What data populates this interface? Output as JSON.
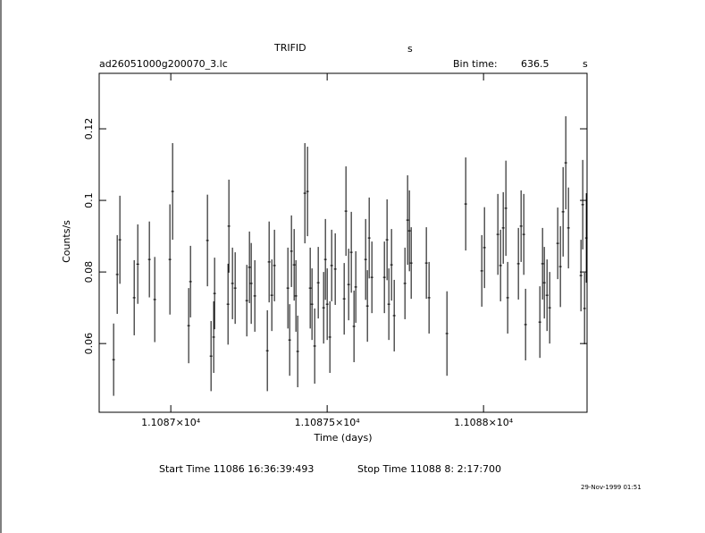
{
  "chart_data": {
    "type": "scatter",
    "title": "TRIFID",
    "title_unit": "s",
    "file": "ad26051000g200070_3.lc",
    "bin_label": "Bin time:",
    "bin_time": 636.5,
    "bin_unit": "s",
    "ylabel": "Counts/s",
    "xlabel": "Time (days)",
    "start_time": "Start Time 11086 16:36:39:493",
    "stop_time": "Stop Time 11088  8: 2:17:700",
    "date": "29-Nov-1999 01:51",
    "color": "#000000",
    "xlim": [
      11086.771,
      11088.331
    ],
    "ylim": [
      0.0408,
      0.1355
    ],
    "xticks": [
      {
        "value": 11087,
        "label": "1.1087×10⁴"
      },
      {
        "value": 11087.5,
        "label": "1.10875×10⁴"
      },
      {
        "value": 11088,
        "label": "1.1088×10⁴"
      }
    ],
    "yticks": [
      0.06,
      0.08,
      0.1,
      0.12
    ],
    "x": [
      11086.8171,
      11086.8286,
      11086.8371,
      11086.8829,
      11086.8943,
      11086.9314,
      11086.9486,
      11086.9971,
      11087.0057,
      11087.0571,
      11087.0629,
      11087.1171,
      11087.1286,
      11087.1371,
      11087.14,
      11087.1829,
      11087.1857,
      11087.1971,
      11087.2057,
      11087.2429,
      11087.2514,
      11087.2571,
      11087.2686,
      11087.3086,
      11087.3143,
      11087.3229,
      11087.3314,
      11087.3743,
      11087.38,
      11087.3857,
      11087.3943,
      11087.4,
      11087.4057,
      11087.4286,
      11087.4371,
      11087.4457,
      11087.4514,
      11087.46,
      11087.4714,
      11087.4886,
      11087.4943,
      11087.5,
      11087.5086,
      11087.5143,
      11087.5257,
      11087.5543,
      11087.56,
      11087.5686,
      11087.5771,
      11087.5857,
      11087.5914,
      11087.6229,
      11087.6286,
      11087.6343,
      11087.6429,
      11087.6829,
      11087.6914,
      11087.6971,
      11087.7057,
      11087.7143,
      11087.7486,
      11087.7571,
      11087.7629,
      11087.7686,
      11087.8171,
      11087.8257,
      11087.8829,
      11087.9429,
      11087.9943,
      11088.0029,
      11088.0457,
      11088.0543,
      11088.0629,
      11088.0714,
      11088.0771,
      11088.1114,
      11088.12,
      11088.1286,
      11088.1343,
      11088.18,
      11088.1886,
      11088.1943,
      11088.2029,
      11088.2114,
      11088.2371,
      11088.2457,
      11088.2543,
      11088.2629,
      11088.2714,
      11088.3114,
      11088.3171,
      11088.3229,
      11088.3286
    ],
    "values": [
      0.0555,
      0.0793,
      0.089,
      0.0728,
      0.0822,
      0.0835,
      0.0723,
      0.0835,
      0.1025,
      0.065,
      0.0773,
      0.0888,
      0.0565,
      0.0618,
      0.074,
      0.071,
      0.0928,
      0.0768,
      0.0755,
      0.072,
      0.0813,
      0.0768,
      0.0733,
      0.058,
      0.0828,
      0.0735,
      0.0818,
      0.0755,
      0.061,
      0.0858,
      0.082,
      0.0733,
      0.0578,
      0.102,
      0.1025,
      0.0755,
      0.071,
      0.0593,
      0.077,
      0.07,
      0.0835,
      0.071,
      0.0618,
      0.0818,
      0.0808,
      0.0725,
      0.097,
      0.0765,
      0.0855,
      0.0648,
      0.0758,
      0.0835,
      0.0705,
      0.0895,
      0.0785,
      0.0785,
      0.089,
      0.071,
      0.082,
      0.0678,
      0.0768,
      0.0945,
      0.0915,
      0.0825,
      0.0825,
      0.0728,
      0.0628,
      0.099,
      0.0803,
      0.0868,
      0.0905,
      0.0818,
      0.0923,
      0.0978,
      0.0728,
      0.0823,
      0.0928,
      0.0905,
      0.0653,
      0.066,
      0.0823,
      0.077,
      0.0735,
      0.07,
      0.088,
      0.0815,
      0.0968,
      0.1105,
      0.0923,
      0.079,
      0.0988,
      0.0698,
      0.0895
    ],
    "errors": [
      0.0101,
      0.011,
      0.0123,
      0.0105,
      0.0111,
      0.0106,
      0.0119,
      0.0154,
      0.0135,
      0.0105,
      0.01,
      0.0128,
      0.0098,
      0.01,
      0.01,
      0.0113,
      0.013,
      0.01,
      0.01,
      0.01,
      0.01,
      0.0113,
      0.01,
      0.0113,
      0.0113,
      0.01,
      0.01,
      0.0113,
      0.01,
      0.01,
      0.01,
      0.01,
      0.01,
      0.014,
      0.0125,
      0.0113,
      0.01,
      0.0105,
      0.01,
      0.01,
      0.0113,
      0.01,
      0.01,
      0.01,
      0.01,
      0.01,
      0.0125,
      0.01,
      0.0113,
      0.01,
      0.01,
      0.0113,
      0.01,
      0.0113,
      0.01,
      0.01,
      0.0113,
      0.01,
      0.01,
      0.01,
      0.01,
      0.0125,
      0.0113,
      0.01,
      0.01,
      0.01,
      0.0118,
      0.013,
      0.01,
      0.0113,
      0.0113,
      0.01,
      0.01,
      0.0133,
      0.01,
      0.01,
      0.01,
      0.0113,
      0.01,
      0.01,
      0.01,
      0.01,
      0.01,
      0.01,
      0.01,
      0.0113,
      0.0125,
      0.013,
      0.0113,
      0.01,
      0.0125,
      0.01,
      0.0125
    ]
  }
}
